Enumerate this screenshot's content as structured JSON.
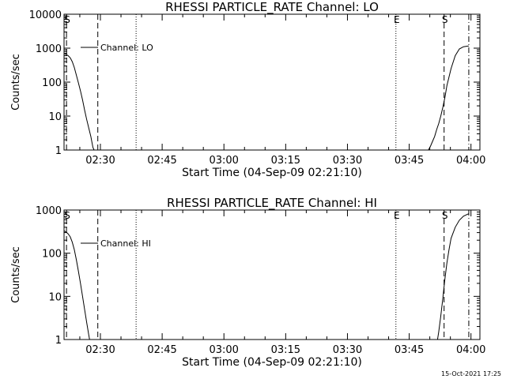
{
  "chart_data": [
    {
      "type": "line",
      "title": "RHESSI PARTICLE_RATE Channel: LO",
      "xlabel": "Start Time (04-Sep-09 02:21:10)",
      "ylabel": "Counts/sec",
      "x_unit": "minutes after 02:21:10",
      "xlim": [
        0,
        101
      ],
      "ylim": [
        1,
        10000
      ],
      "y_scale": "log",
      "y_ticks": [
        "1",
        "10",
        "100",
        "1000",
        "10000"
      ],
      "x_ticks": [
        {
          "value": 8.83,
          "label": "02:30"
        },
        {
          "value": 23.83,
          "label": "02:45"
        },
        {
          "value": 38.83,
          "label": "03:00"
        },
        {
          "value": 53.83,
          "label": "03:15"
        },
        {
          "value": 68.83,
          "label": "03:30"
        },
        {
          "value": 83.83,
          "label": "03:45"
        },
        {
          "value": 98.83,
          "label": "04:00"
        }
      ],
      "legend": {
        "label": "Channel: LO",
        "placement": "top-left"
      },
      "markers": [
        {
          "x": 0.6,
          "label": "S",
          "style": "dashed"
        },
        {
          "x": 8.2,
          "label": "",
          "style": "dashed"
        },
        {
          "x": 17.5,
          "label": "",
          "style": "dotted"
        },
        {
          "x": 80.6,
          "label": "E",
          "style": "dotted"
        },
        {
          "x": 92.3,
          "label": "S",
          "style": "dashed"
        },
        {
          "x": 98.3,
          "label": "",
          "style": "dashdot"
        }
      ],
      "series": [
        {
          "name": "Channel: LO",
          "x": [
            0,
            0.5,
            1,
            1.5,
            2,
            2.5,
            3,
            3.5,
            4,
            4.5,
            5,
            5.5,
            6,
            6.5,
            7,
            7.3
          ],
          "y": [
            700,
            650,
            600,
            520,
            400,
            270,
            160,
            95,
            55,
            30,
            15,
            8,
            4.5,
            2.5,
            1.2,
            1
          ]
        },
        {
          "name": "Channel: LO",
          "x": [
            88.5,
            89,
            89.5,
            90,
            90.5,
            91,
            91.5,
            92,
            92.5,
            93,
            94,
            95,
            96,
            97,
            98,
            98.3
          ],
          "y": [
            1,
            1.3,
            1.8,
            2.5,
            4,
            6,
            10,
            18,
            35,
            80,
            250,
            600,
            950,
            1100,
            1150,
            1150
          ]
        }
      ]
    },
    {
      "type": "line",
      "title": "RHESSI PARTICLE_RATE Channel: HI",
      "xlabel": "Start Time (04-Sep-09 02:21:10)",
      "ylabel": "Counts/sec",
      "x_unit": "minutes after 02:21:10",
      "xlim": [
        0,
        101
      ],
      "ylim": [
        1,
        1000
      ],
      "y_scale": "log",
      "y_ticks": [
        "1",
        "10",
        "100",
        "1000"
      ],
      "x_ticks": [
        {
          "value": 8.83,
          "label": "02:30"
        },
        {
          "value": 23.83,
          "label": "02:45"
        },
        {
          "value": 38.83,
          "label": "03:00"
        },
        {
          "value": 53.83,
          "label": "03:15"
        },
        {
          "value": 68.83,
          "label": "03:30"
        },
        {
          "value": 83.83,
          "label": "03:45"
        },
        {
          "value": 98.83,
          "label": "04:00"
        }
      ],
      "legend": {
        "label": "Channel: HI",
        "placement": "top-left"
      },
      "markers": [
        {
          "x": 0.6,
          "label": "S",
          "style": "dashed"
        },
        {
          "x": 8.2,
          "label": "",
          "style": "dashed"
        },
        {
          "x": 17.5,
          "label": "",
          "style": "dotted"
        },
        {
          "x": 80.6,
          "label": "E",
          "style": "dotted"
        },
        {
          "x": 92.3,
          "label": "S",
          "style": "dashed"
        },
        {
          "x": 98.3,
          "label": "",
          "style": "dashdot"
        }
      ],
      "series": [
        {
          "name": "Channel: HI",
          "x": [
            0,
            0.5,
            1,
            1.5,
            2,
            2.5,
            3,
            3.5,
            4,
            4.5,
            5,
            5.5,
            6,
            6.2
          ],
          "y": [
            330,
            310,
            280,
            240,
            180,
            120,
            70,
            38,
            20,
            10,
            5,
            2.5,
            1.3,
            1
          ]
        },
        {
          "name": "Channel: HI",
          "x": [
            90.7,
            91,
            91.5,
            92,
            92.5,
            93,
            93.5,
            94,
            95,
            96,
            97,
            98,
            98.3
          ],
          "y": [
            1,
            1.5,
            3.5,
            9,
            25,
            60,
            120,
            220,
            400,
            580,
            720,
            800,
            820
          ]
        }
      ]
    }
  ],
  "footer": "15-Oct-2021 17:25"
}
